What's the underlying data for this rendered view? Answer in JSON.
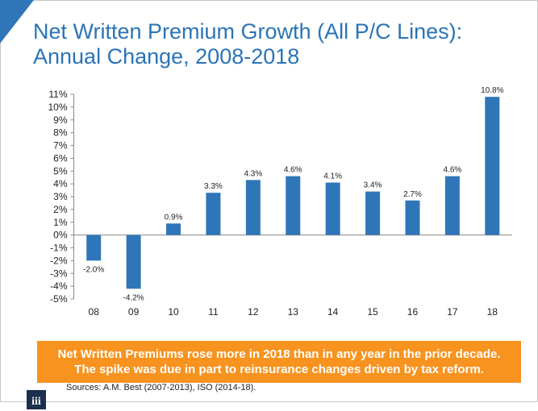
{
  "title_line1": "Net Written Premium Growth (All P/C Lines):",
  "title_line2": "Annual Change, 2008-2018",
  "callout_line1": "Net Written Premiums rose more in 2018 than in any year in the prior decade.",
  "callout_line2": "The spike was due in part to reinsurance changes driven by tax reform.",
  "source": "Sources:  A.M. Best (2007-2013), ISO (2014-18).",
  "logo_text": "iii",
  "colors": {
    "bar": "#2f76b8",
    "title": "#2a74b8",
    "callout": "#f7931e",
    "logo": "#1b2f4e"
  },
  "chart_data": {
    "type": "bar",
    "title": "Net Written Premium Growth (All P/C Lines): Annual Change, 2008-2018",
    "categories": [
      "08",
      "09",
      "10",
      "11",
      "12",
      "13",
      "14",
      "15",
      "16",
      "17",
      "18"
    ],
    "values": [
      -2.0,
      -4.2,
      0.9,
      3.3,
      4.3,
      4.6,
      4.1,
      3.4,
      2.7,
      4.6,
      10.8
    ],
    "data_labels": [
      "-2.0%",
      "-4.2%",
      "0.9%",
      "3.3%",
      "4.3%",
      "4.6%",
      "4.1%",
      "3.4%",
      "2.7%",
      "4.6%",
      "10.8%"
    ],
    "ylim": [
      -5,
      11
    ],
    "yticks": [
      "11%",
      "10%",
      "9%",
      "8%",
      "7%",
      "6%",
      "5%",
      "4%",
      "3%",
      "2%",
      "1%",
      "0%",
      "-1%",
      "-2%",
      "-3%",
      "-4%",
      "-5%"
    ],
    "grid": false,
    "xlabel": "",
    "ylabel": ""
  }
}
